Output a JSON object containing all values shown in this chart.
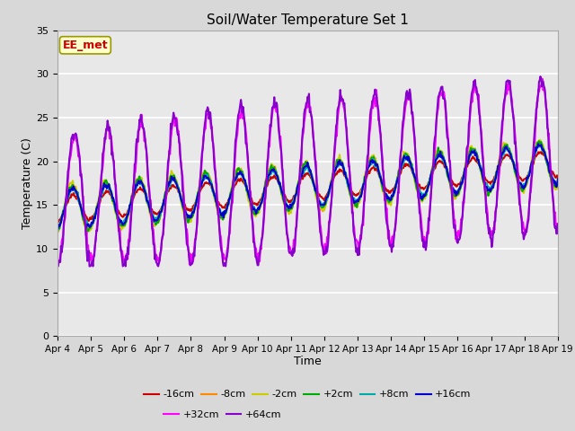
{
  "title": "Soil/Water Temperature Set 1",
  "xlabel": "Time",
  "ylabel": "Temperature (C)",
  "ylim": [
    0,
    35
  ],
  "yticks": [
    0,
    5,
    10,
    15,
    20,
    25,
    30,
    35
  ],
  "x_labels": [
    "Apr 4",
    "Apr 5",
    "Apr 6",
    "Apr 7",
    "Apr 8",
    "Apr 9",
    "Apr 10",
    "Apr 11",
    "Apr 12",
    "Apr 13",
    "Apr 14",
    "Apr 15",
    "Apr 16",
    "Apr 17",
    "Apr 18",
    "Apr 19"
  ],
  "annotation_text": "EE_met",
  "annotation_bg": "#ffffcc",
  "annotation_border": "#999900",
  "annotation_text_color": "#cc0000",
  "lines": {
    "-16cm": {
      "color": "#cc0000",
      "lw": 1.5
    },
    "-8cm": {
      "color": "#ff8800",
      "lw": 1.5
    },
    "-2cm": {
      "color": "#cccc00",
      "lw": 1.5
    },
    "+2cm": {
      "color": "#00aa00",
      "lw": 1.5
    },
    "+8cm": {
      "color": "#00aaaa",
      "lw": 1.5
    },
    "+16cm": {
      "color": "#0000cc",
      "lw": 1.5
    },
    "+32cm": {
      "color": "#ff00ff",
      "lw": 1.5
    },
    "+64cm": {
      "color": "#8800cc",
      "lw": 1.5
    }
  },
  "bg_color": "#e8e8e8",
  "fig_color": "#d8d8d8",
  "grid_color": "#ffffff"
}
